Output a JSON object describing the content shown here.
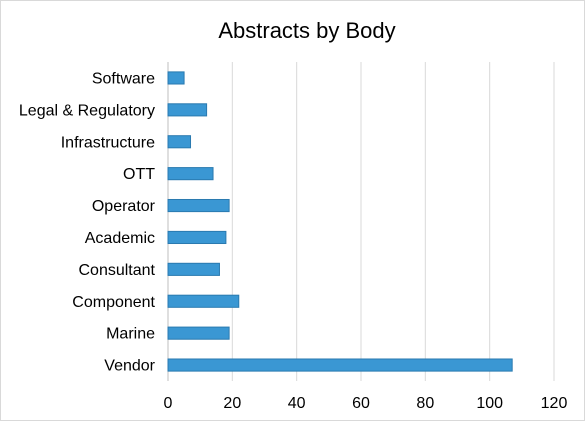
{
  "chart_data": {
    "type": "bar",
    "orientation": "horizontal",
    "title": "Abstracts by Body",
    "xlabel": "",
    "ylabel": "",
    "categories": [
      "Software",
      "Legal & Regulatory",
      "Infrastructure",
      "OTT",
      "Operator",
      "Academic",
      "Consultant",
      "Component",
      "Marine",
      "Vendor"
    ],
    "values": [
      5,
      12,
      7,
      14,
      19,
      18,
      16,
      22,
      19,
      107
    ],
    "xlim": [
      0,
      120
    ],
    "xticks": [
      "0",
      "20",
      "40",
      "60",
      "80",
      "100",
      "120"
    ],
    "grid": "vertical",
    "legend": "none",
    "bar_color": "#3a97d3",
    "bar_edge_color": "#2a7ab0",
    "grid_color": "#d9d9d9"
  }
}
